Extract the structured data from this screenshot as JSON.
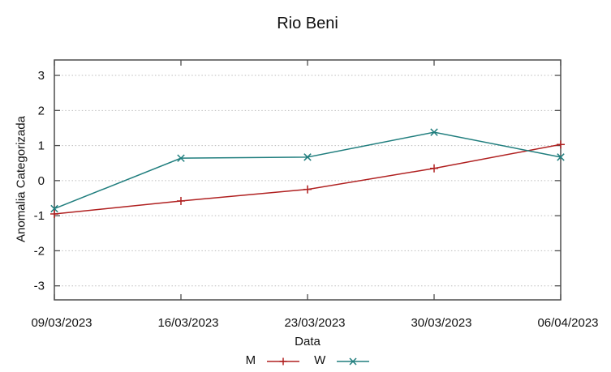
{
  "title": "Rio Beni",
  "chart_data": {
    "type": "line",
    "title": "Rio Beni",
    "xlabel": "Data",
    "ylabel": "Anomalia Categorizada",
    "x": [
      "09/03/2023",
      "16/03/2023",
      "23/03/2023",
      "30/03/2023",
      "06/04/2023"
    ],
    "y_ticks": [
      3,
      2,
      1,
      0,
      -1,
      -2,
      -3
    ],
    "ylim": [
      -3.4,
      3.44
    ],
    "grid": "horizontal-dotted",
    "legend_position": "below-center",
    "series": [
      {
        "name": "M",
        "marker": "plus",
        "color": "#b02020",
        "values": [
          -0.95,
          -0.58,
          -0.25,
          0.35,
          1.03
        ]
      },
      {
        "name": "W",
        "marker": "cross",
        "color": "#207e7e",
        "values": [
          -0.8,
          0.64,
          0.67,
          1.38,
          0.67
        ]
      }
    ]
  },
  "style": {
    "background": "#ffffff",
    "frame_color": "#4d4d4d",
    "grid_color": "#bcbcbc",
    "tick_color": "#4d4d4d",
    "text_color": "#111111"
  }
}
